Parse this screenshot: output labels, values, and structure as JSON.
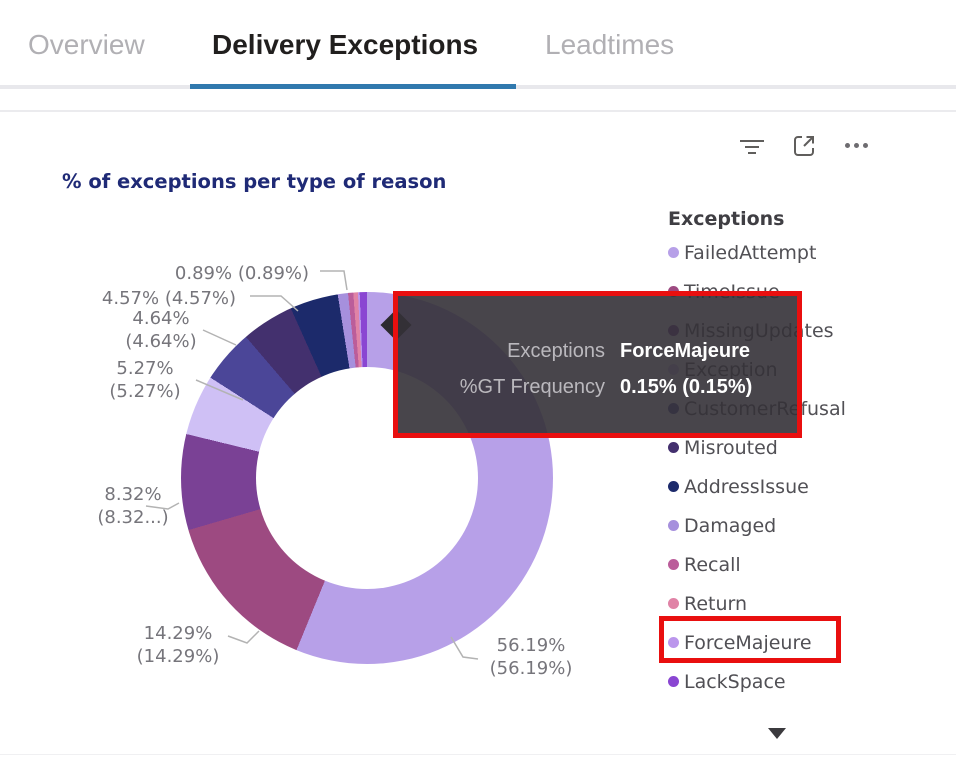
{
  "tabs": [
    {
      "label": "Overview",
      "active": false
    },
    {
      "label": "Delivery Exceptions",
      "active": true
    },
    {
      "label": "Leadtimes",
      "active": false
    }
  ],
  "toolbar": {
    "icons": [
      {
        "name": "filter-icon"
      },
      {
        "name": "focus-mode-icon"
      },
      {
        "name": "more-options-icon"
      }
    ]
  },
  "visual": {
    "title": "% of exceptions per type of reason",
    "title_color": "#1f2a76"
  },
  "chart_data": {
    "type": "pie",
    "donut": true,
    "title": "% of exceptions per type of reason",
    "legend_title": "Exceptions",
    "legend_position": "right",
    "value_format": "percent",
    "series_label": "%GT Frequency",
    "slices": [
      {
        "name": "FailedAttempt",
        "value_pct": 56.19,
        "color": "#b7a0e8",
        "callout_lines": [
          "56.19%",
          "(56.19%)"
        ]
      },
      {
        "name": "TimeIssue",
        "value_pct": 14.29,
        "color": "#9d4a81",
        "callout_lines": [
          "14.29%",
          "(14.29%)"
        ]
      },
      {
        "name": "MissingUpdates",
        "value_pct": 8.32,
        "color": "#7a4195",
        "callout_lines": [
          "8.32%",
          "(8.32...)"
        ]
      },
      {
        "name": "Exception",
        "value_pct": 5.27,
        "color": "#cfc0f5",
        "callout_lines": [
          "5.27%",
          "(5.27%)"
        ]
      },
      {
        "name": "CustomerRefusal",
        "value_pct": 4.64,
        "color": "#4b4698",
        "callout_lines": [
          "4.64%",
          "(4.64%)"
        ]
      },
      {
        "name": "Misrouted",
        "value_pct": 4.57,
        "color": "#43306e",
        "callout_lines": [
          "4.57% (4.57%)"
        ]
      },
      {
        "name": "AddressIssue",
        "value_pct": 4.2,
        "color": "#1c2a6b",
        "callout_lines": null
      },
      {
        "name": "Damaged",
        "value_pct": 0.89,
        "color": "#a690dd",
        "callout_lines": [
          "0.89% (0.89%)"
        ]
      },
      {
        "name": "Recall",
        "value_pct": 0.45,
        "color": "#bb5d9a",
        "callout_lines": null
      },
      {
        "name": "Return",
        "value_pct": 0.4,
        "color": "#e083a6",
        "callout_lines": null
      },
      {
        "name": "ForceMajeure",
        "value_pct": 0.15,
        "color": "#bb96ec",
        "callout_lines": null
      },
      {
        "name": "LackSpace",
        "value_pct": 0.63,
        "color": "#8a46d2",
        "callout_lines": null
      }
    ]
  },
  "legend": {
    "title": "Exceptions",
    "scroll_down_indicator": true
  },
  "tooltip": {
    "rows": [
      {
        "label": "Exceptions",
        "value": "ForceMajeure"
      },
      {
        "label": "%GT Frequency",
        "value": "0.15% (0.15%)"
      }
    ]
  },
  "annotations": {
    "color": "#e90f0f",
    "boxes": [
      "tooltip",
      "legend-item-ForceMajeure"
    ]
  },
  "colors": {
    "active_tab_underline": "#3079ae",
    "annotation_red": "#e90f0f",
    "title": "#1f2a76"
  }
}
